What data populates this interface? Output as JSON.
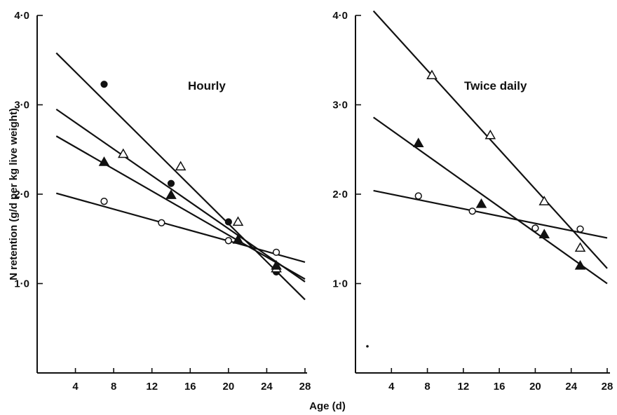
{
  "chart_data": {
    "type": "scatter",
    "x_label": "Age (d)",
    "y_label": "N retention (g/d per kg live weight)",
    "x_range": [
      0,
      28
    ],
    "y_range": [
      0,
      4.0
    ],
    "x_ticks": [
      4,
      8,
      12,
      16,
      20,
      24,
      28
    ],
    "y_ticks": [
      1.0,
      2.0,
      3.0,
      4.0
    ],
    "y_tick_labels": [
      "1·0",
      "2·0",
      "3·0",
      "4·0"
    ],
    "grid": false,
    "legend": "none",
    "panels": [
      {
        "title": "Hourly",
        "series": [
          {
            "marker": "filled-circle",
            "points": [
              [
                7,
                3.23
              ],
              [
                14,
                2.12
              ],
              [
                20,
                1.69
              ],
              [
                25,
                1.13
              ]
            ],
            "fit_line": [
              [
                2,
                3.58
              ],
              [
                28,
                0.82
              ]
            ]
          },
          {
            "marker": "open-triangle",
            "points": [
              [
                9,
                2.45
              ],
              [
                15,
                2.31
              ],
              [
                21,
                1.69
              ],
              [
                25,
                1.17
              ]
            ],
            "fit_line": [
              [
                2,
                2.95
              ],
              [
                28,
                1.02
              ]
            ]
          },
          {
            "marker": "filled-triangle",
            "points": [
              [
                7,
                2.36
              ],
              [
                14,
                1.99
              ],
              [
                21,
                1.49
              ],
              [
                25,
                1.2
              ]
            ],
            "fit_line": [
              [
                2,
                2.65
              ],
              [
                28,
                1.05
              ]
            ]
          },
          {
            "marker": "open-circle",
            "points": [
              [
                7,
                1.92
              ],
              [
                13,
                1.68
              ],
              [
                20,
                1.48
              ],
              [
                25,
                1.35
              ]
            ],
            "fit_line": [
              [
                2,
                2.01
              ],
              [
                28,
                1.24
              ]
            ]
          }
        ]
      },
      {
        "title": "Twice daily",
        "series": [
          {
            "marker": "open-triangle",
            "points": [
              [
                8.5,
                3.33
              ],
              [
                15,
                2.66
              ],
              [
                21,
                1.92
              ],
              [
                25,
                1.4
              ]
            ],
            "fit_line": [
              [
                2,
                4.05
              ],
              [
                28,
                1.17
              ]
            ]
          },
          {
            "marker": "filled-triangle",
            "points": [
              [
                7,
                2.57
              ],
              [
                14,
                1.89
              ],
              [
                21,
                1.55
              ],
              [
                25,
                1.2
              ]
            ],
            "fit_line": [
              [
                2,
                2.86
              ],
              [
                28,
                1.0
              ]
            ]
          },
          {
            "marker": "open-circle",
            "points": [
              [
                7,
                1.98
              ],
              [
                13,
                1.81
              ],
              [
                20,
                1.62
              ],
              [
                25,
                1.61
              ]
            ],
            "fit_line": [
              [
                2,
                2.04
              ],
              [
                28,
                1.51
              ]
            ]
          }
        ]
      }
    ]
  }
}
